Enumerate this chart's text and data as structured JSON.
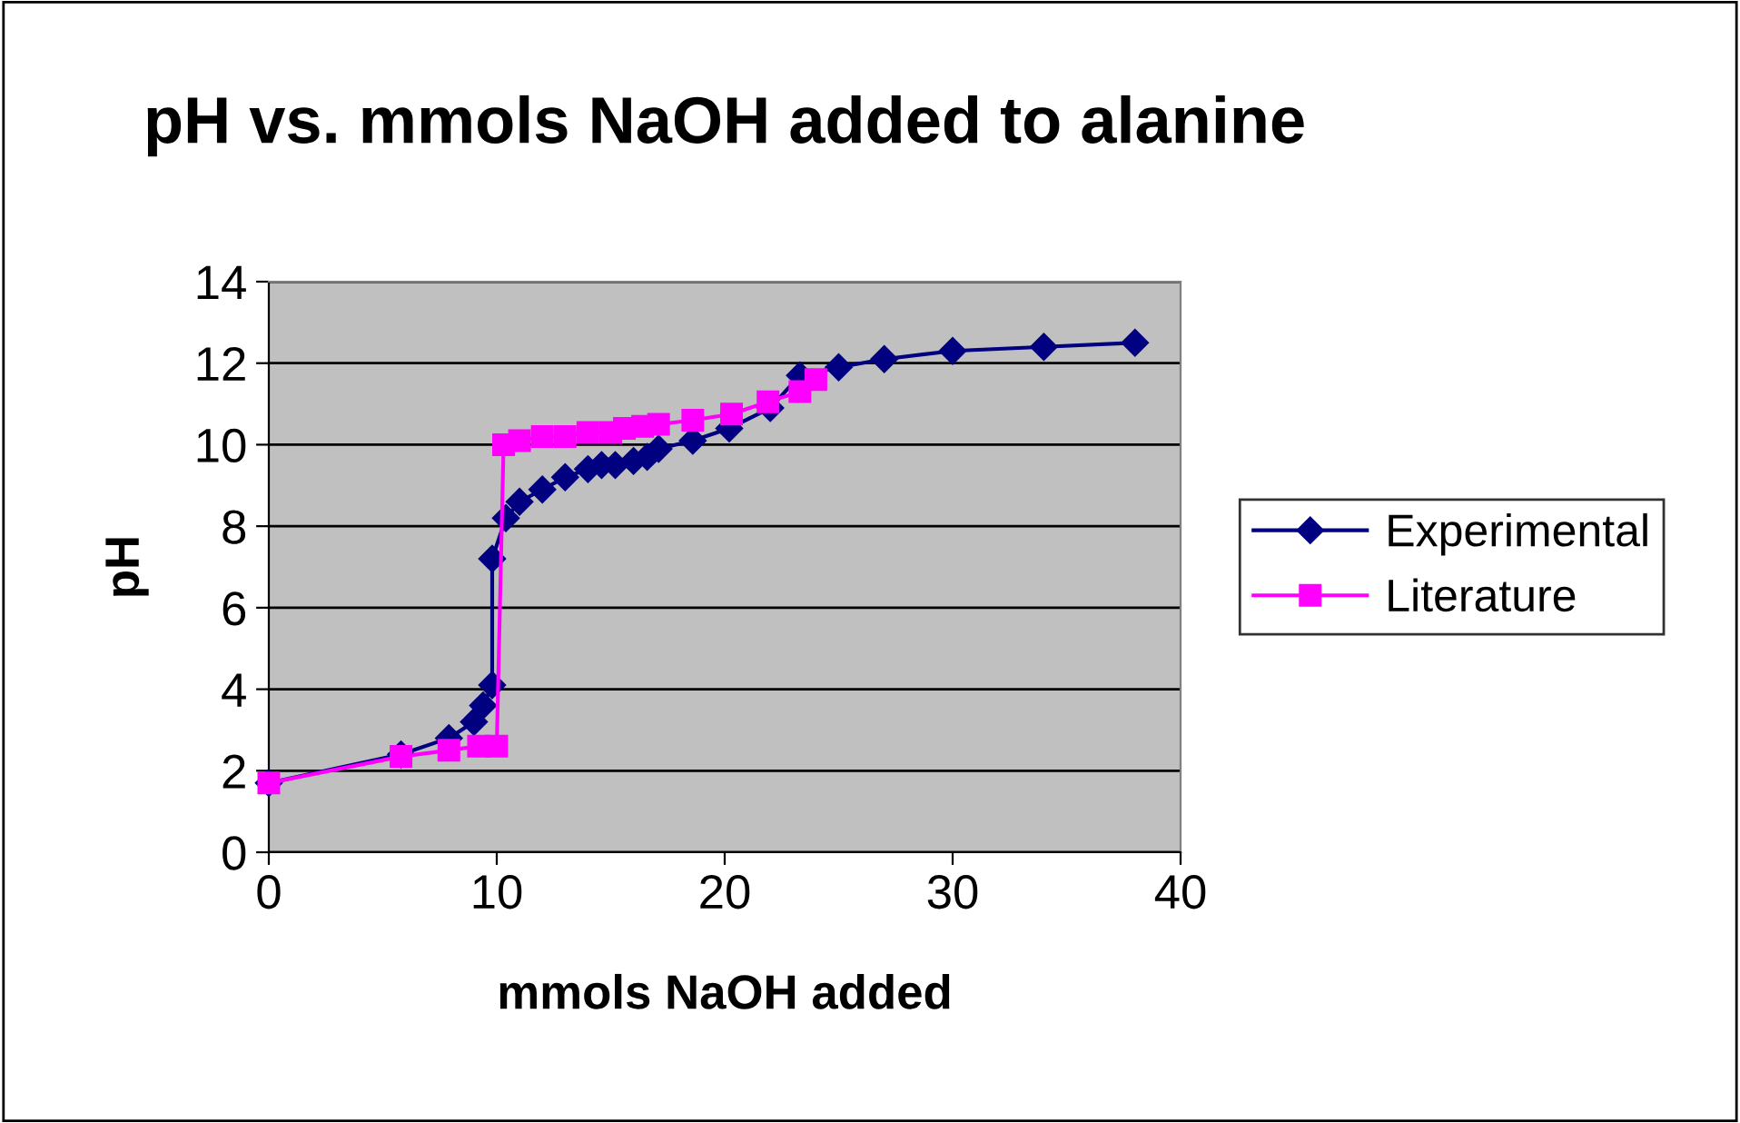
{
  "chart_data": {
    "type": "line",
    "title": "pH vs. mmols NaOH added to alanine",
    "xlabel": "mmols NaOH added",
    "ylabel": "pH",
    "xlim": [
      0,
      40
    ],
    "xticks": [
      0,
      10,
      20,
      30,
      40
    ],
    "ylim": [
      0,
      14
    ],
    "yticks": [
      0,
      2,
      4,
      6,
      8,
      10,
      12,
      14
    ],
    "grid": "y",
    "legend": "right",
    "series": [
      {
        "name": "Experimental",
        "color": "#000080",
        "marker": "diamond",
        "x": [
          0,
          5.8,
          7.9,
          9,
          9.4,
          9.8,
          9.8,
          10.4,
          11,
          12,
          13,
          14,
          14.6,
          15.2,
          16,
          16.6,
          17.1,
          18.6,
          20.2,
          22,
          23.3,
          25,
          27,
          30,
          34,
          38
        ],
        "values": [
          1.7,
          2.4,
          2.8,
          3.2,
          3.6,
          4.1,
          7.2,
          8.2,
          8.6,
          8.9,
          9.2,
          9.4,
          9.5,
          9.5,
          9.6,
          9.7,
          9.9,
          10.1,
          10.4,
          10.9,
          11.7,
          11.9,
          12.1,
          12.3,
          12.4,
          12.5
        ]
      },
      {
        "name": "Literature",
        "color": "#ff00ff",
        "marker": "square",
        "x": [
          0,
          5.8,
          7.9,
          9.2,
          10,
          10.3,
          11,
          12,
          13,
          14,
          15,
          15.6,
          16.4,
          17.1,
          18.6,
          20.3,
          21.9,
          23.3,
          24
        ],
        "values": [
          1.7,
          2.35,
          2.5,
          2.6,
          2.6,
          10,
          10.1,
          10.2,
          10.2,
          10.3,
          10.3,
          10.4,
          10.45,
          10.5,
          10.6,
          10.75,
          11.05,
          11.3,
          11.6
        ]
      }
    ]
  }
}
